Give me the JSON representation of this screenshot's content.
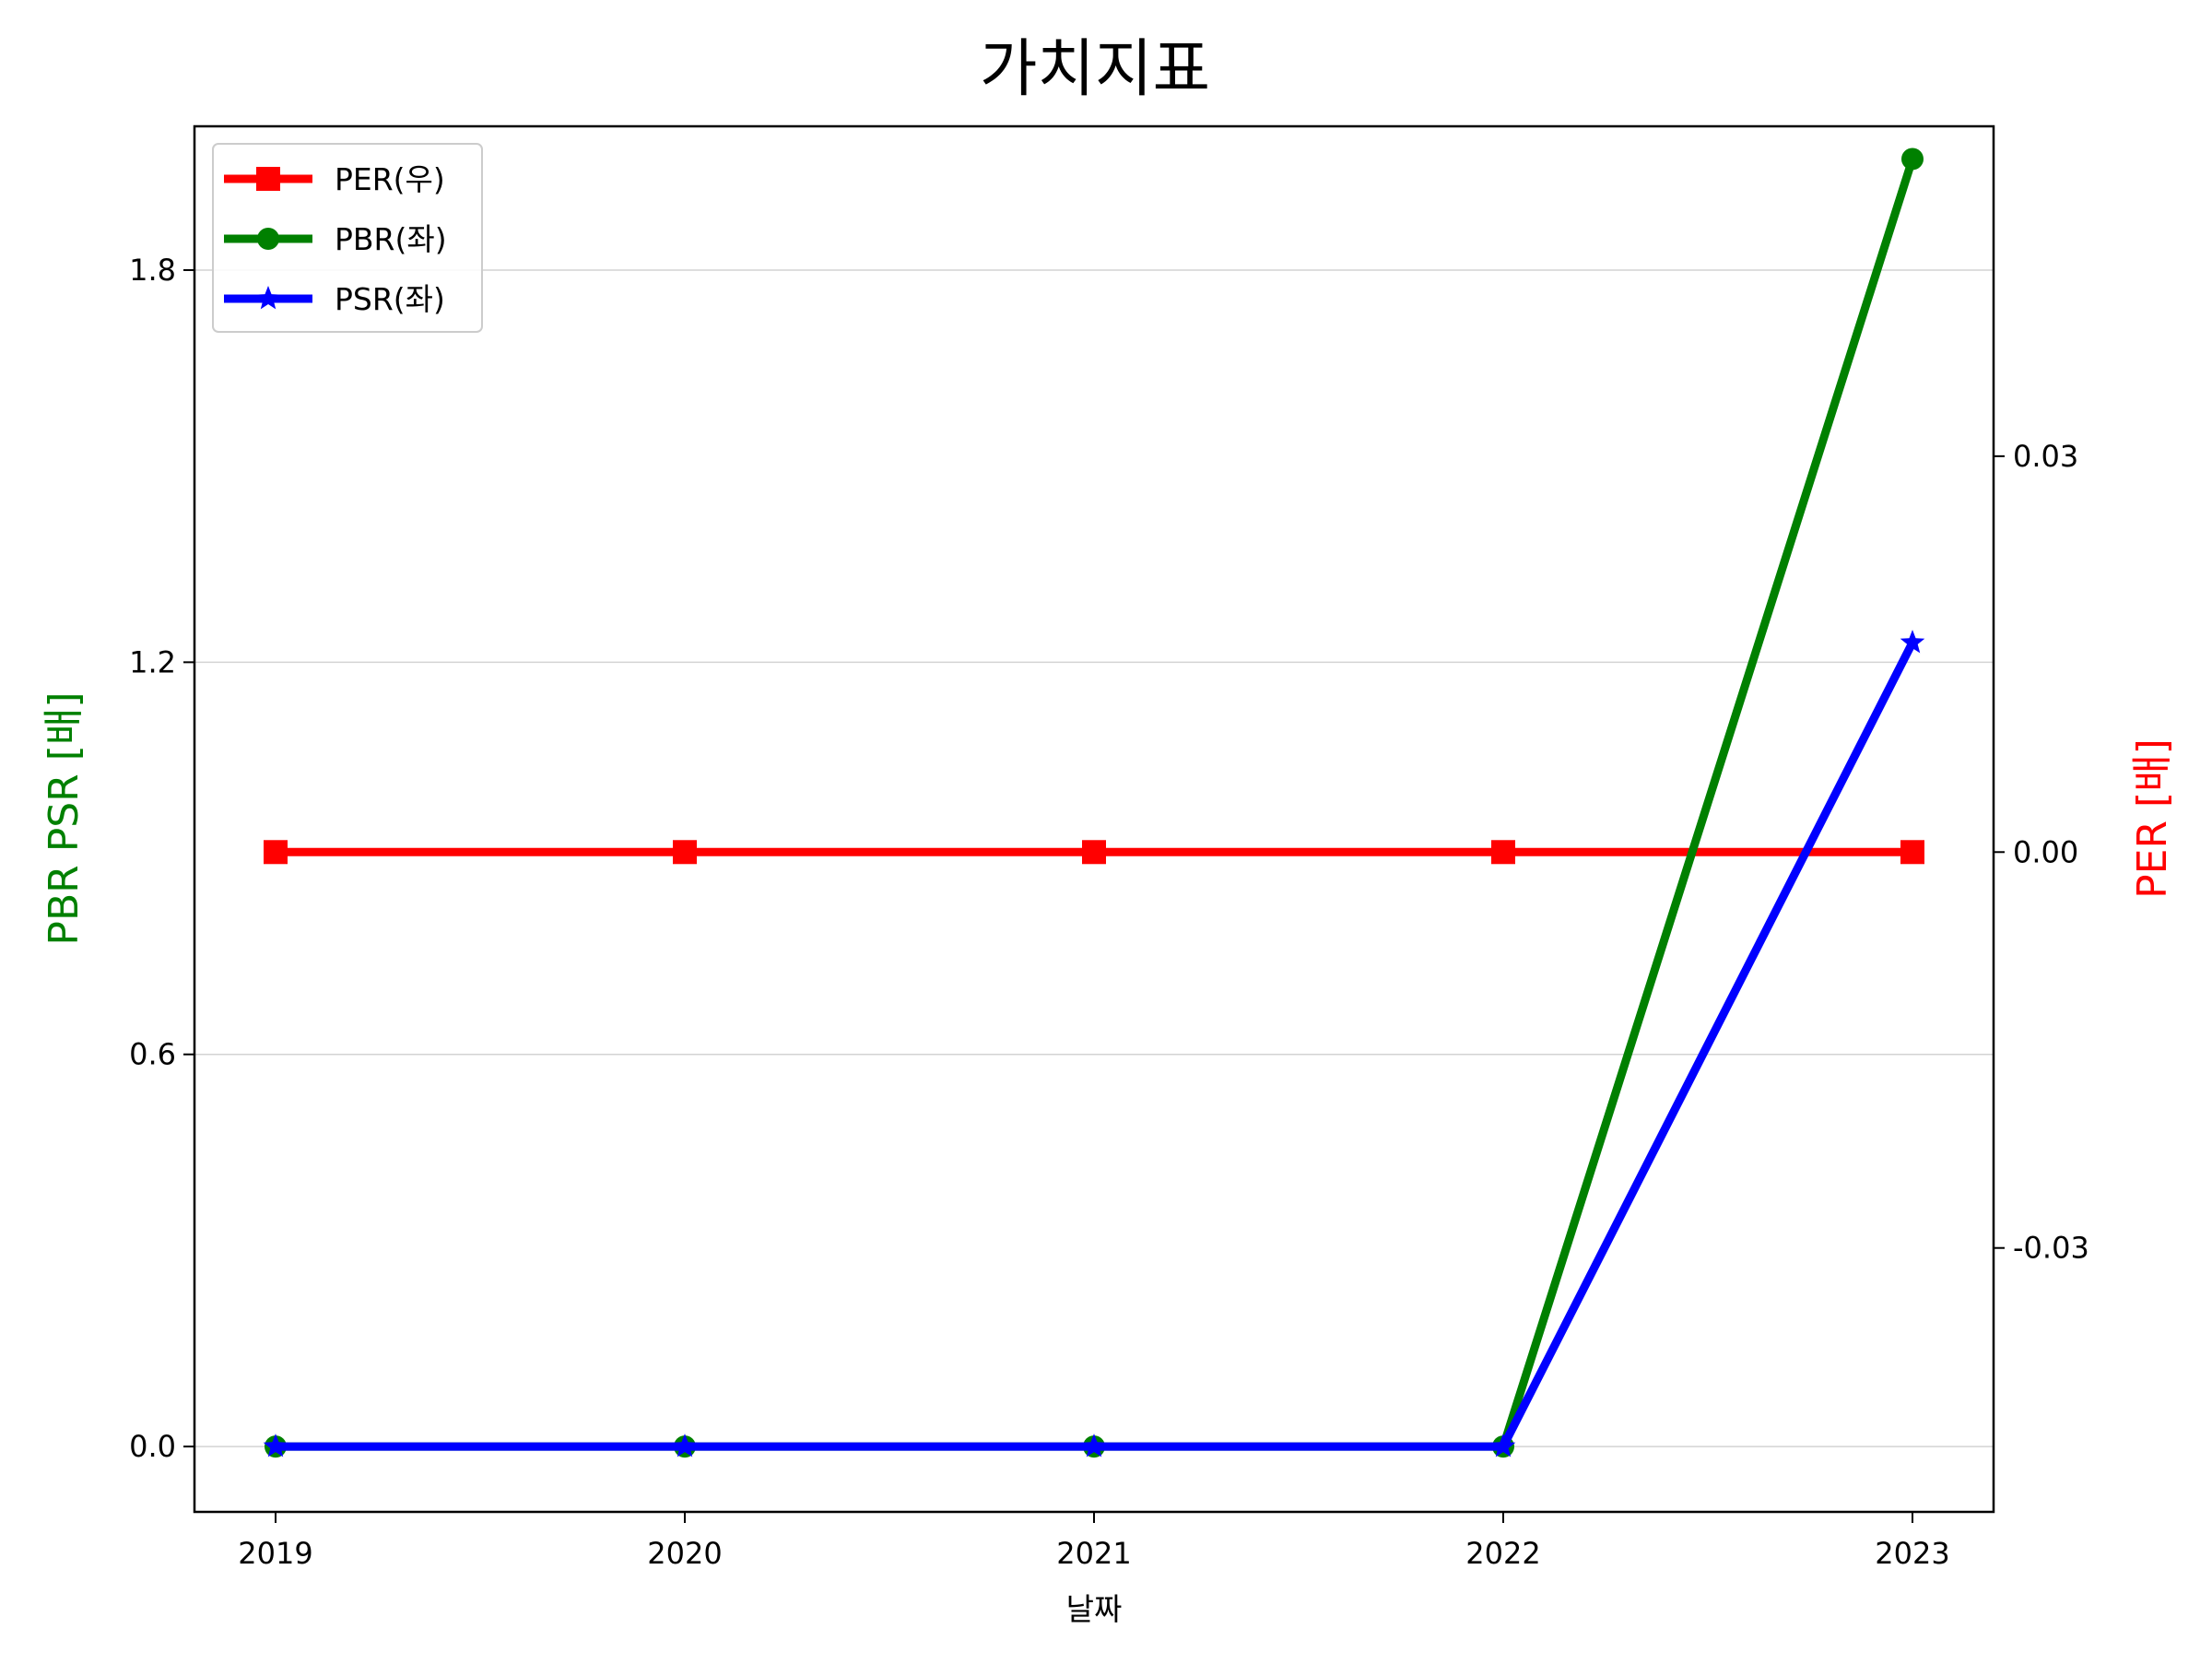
{
  "chart_data": {
    "type": "line",
    "title": "가치지표",
    "xlabel": "날짜",
    "ylabel_left": "PBR PSR [배]",
    "ylabel_right": "PER [배]",
    "categories": [
      "2019",
      "2020",
      "2021",
      "2022",
      "2023"
    ],
    "left_axis": {
      "ylim": [
        -0.1,
        2.02
      ],
      "ticks": [
        0.0,
        0.6,
        1.2,
        1.8
      ],
      "tick_labels": [
        "0.0",
        "0.6",
        "1.2",
        "1.8"
      ]
    },
    "right_axis": {
      "ylim": [
        -0.05,
        0.055
      ],
      "ticks": [
        -0.03,
        0.0,
        0.03
      ],
      "tick_labels": [
        "-0.03",
        "0.00",
        "0.03"
      ]
    },
    "grid": true,
    "legend_position": "top-left",
    "series": [
      {
        "name": "PER(우)",
        "axis": "right",
        "color": "#ff0000",
        "marker": "square",
        "values": [
          0,
          0,
          0,
          0,
          0
        ]
      },
      {
        "name": "PBR(좌)",
        "axis": "left",
        "color": "#008000",
        "marker": "circle",
        "values": [
          0,
          0,
          0,
          0,
          1.97
        ]
      },
      {
        "name": "PSR(좌)",
        "axis": "left",
        "color": "#0000ff",
        "marker": "star",
        "values": [
          0,
          0,
          0,
          0,
          1.23
        ]
      }
    ],
    "colors": {
      "ylabel_left": "#008000",
      "ylabel_right": "#ff0000"
    }
  }
}
